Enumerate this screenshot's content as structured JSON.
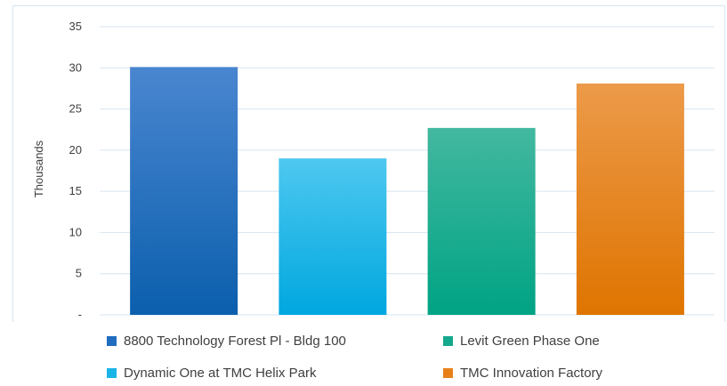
{
  "chart_data": {
    "type": "bar",
    "ylabel": "Thousands",
    "ylim": [
      0,
      35
    ],
    "yticks": [
      {
        "value": 0,
        "label": "-"
      },
      {
        "value": 5,
        "label": "5"
      },
      {
        "value": 10,
        "label": "10"
      },
      {
        "value": 15,
        "label": "15"
      },
      {
        "value": 20,
        "label": "20"
      },
      {
        "value": 25,
        "label": "25"
      },
      {
        "value": 30,
        "label": "30"
      },
      {
        "value": 35,
        "label": "35"
      }
    ],
    "grid": true,
    "legend_position": "bottom",
    "series": [
      {
        "name": "8800 Technology Forest Pl - Bldg 100",
        "value": 30.1,
        "color_top": "#4a86d0",
        "color_bottom": "#0b5fad"
      },
      {
        "name": "Dynamic One at TMC Helix Park",
        "value": 19.0,
        "color_top": "#4ec8f0",
        "color_bottom": "#00a7df"
      },
      {
        "name": "Levit Green Phase One",
        "value": 22.7,
        "color_top": "#43b8a0",
        "color_bottom": "#00a384"
      },
      {
        "name": "TMC Innovation Factory",
        "value": 28.1,
        "color_top": "#ec9a4a",
        "color_bottom": "#df7400"
      }
    ],
    "legend_colors": [
      "#1f6cc0",
      "#1ab4e6",
      "#14a88c",
      "#e8801a"
    ]
  }
}
